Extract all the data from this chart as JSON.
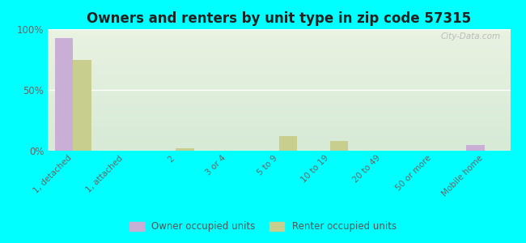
{
  "title": "Owners and renters by unit type in zip code 57315",
  "categories": [
    "1, detached",
    "1, attached",
    "2",
    "3 or 4",
    "5 to 9",
    "10 to 19",
    "20 to 49",
    "50 or more",
    "Mobile home"
  ],
  "owner_values": [
    93,
    0,
    0,
    0,
    0,
    0,
    0,
    0,
    5
  ],
  "renter_values": [
    75,
    0,
    2,
    0,
    12,
    8,
    0,
    0,
    0
  ],
  "owner_color": "#c9aed6",
  "renter_color": "#c8cf8e",
  "background_color": "#00ffff",
  "grad_top": "#eaf2e2",
  "grad_bottom": "#d6ead6",
  "ylim": [
    0,
    100
  ],
  "yticks": [
    0,
    50,
    100
  ],
  "ytick_labels": [
    "0%",
    "50%",
    "100%"
  ],
  "bar_width": 0.35,
  "legend_owner": "Owner occupied units",
  "legend_renter": "Renter occupied units",
  "watermark": "City-Data.com"
}
